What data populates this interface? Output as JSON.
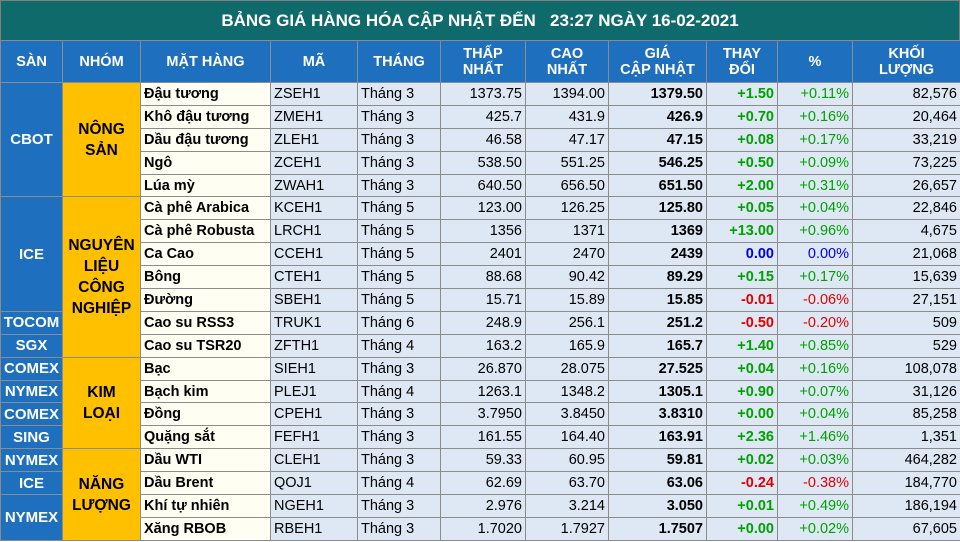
{
  "title": "BẢNG GIÁ HÀNG HÓA CẬP NHẬT ĐẾN   23:27 NGÀY 16-02-2021",
  "header": [
    "SÀN",
    "NHÓM",
    "MẶT HÀNG",
    "MÃ",
    "THÁNG",
    "THẤP\nNHẤT",
    "CAO\nNHẤT",
    "GIÁ\nCẬP NHẬT",
    "THAY\nĐỔI",
    "%",
    "KHỐI\nLƯỢNG"
  ],
  "groups": [
    {
      "label": "NÔNG\nSẢN",
      "exchanges": [
        {
          "label": "CBOT",
          "items": [
            [
              "Đậu tương",
              "ZSEH1",
              "Tháng 3",
              "1373.75",
              "1394.00",
              "1379.50",
              "+1.50",
              "+0.11%",
              "82,576"
            ],
            [
              "Khô đậu tương",
              "ZMEH1",
              "Tháng 3",
              "425.7",
              "431.9",
              "426.9",
              "+0.70",
              "+0.16%",
              "20,464"
            ],
            [
              "Dầu đậu tương",
              "ZLEH1",
              "Tháng 3",
              "46.58",
              "47.17",
              "47.15",
              "+0.08",
              "+0.17%",
              "33,219"
            ],
            [
              "Ngô",
              "ZCEH1",
              "Tháng 3",
              "538.50",
              "551.25",
              "546.25",
              "+0.50",
              "+0.09%",
              "73,225"
            ],
            [
              "Lúa mỳ",
              "ZWAH1",
              "Tháng 3",
              "640.50",
              "656.50",
              "651.50",
              "+2.00",
              "+0.31%",
              "26,657"
            ]
          ]
        }
      ]
    },
    {
      "label": "NGUYÊN\nLIỆU\nCÔNG\nNGHIỆP",
      "exchanges": [
        {
          "label": "ICE",
          "items": [
            [
              "Cà phê Arabica",
              "KCEH1",
              "Tháng 5",
              "123.00",
              "126.25",
              "125.80",
              "+0.05",
              "+0.04%",
              "22,846"
            ],
            [
              "Cà phê Robusta",
              "LRCH1",
              "Tháng 5",
              "1356",
              "1371",
              "1369",
              "+13.00",
              "+0.96%",
              "4,675"
            ],
            [
              "Ca Cao",
              "CCEH1",
              "Tháng 5",
              "2401",
              "2470",
              "2439",
              "0.00",
              "0.00%",
              "21,068"
            ],
            [
              "Bông",
              "CTEH1",
              "Tháng 5",
              "88.68",
              "90.42",
              "89.29",
              "+0.15",
              "+0.17%",
              "15,639"
            ],
            [
              "Đường",
              "SBEH1",
              "Tháng 5",
              "15.71",
              "15.89",
              "15.85",
              "-0.01",
              "-0.06%",
              "27,151"
            ]
          ]
        },
        {
          "label": "TOCOM",
          "items": [
            [
              "Cao su RSS3",
              "TRUK1",
              "Tháng 6",
              "248.9",
              "256.1",
              "251.2",
              "-0.50",
              "-0.20%",
              "509"
            ]
          ]
        },
        {
          "label": "SGX",
          "items": [
            [
              "Cao su TSR20",
              "ZFTH1",
              "Tháng 4",
              "163.2",
              "165.9",
              "165.7",
              "+1.40",
              "+0.85%",
              "529"
            ]
          ]
        }
      ]
    },
    {
      "label": "KIM\nLOẠI",
      "exchanges": [
        {
          "label": "COMEX",
          "items": [
            [
              "Bạc",
              "SIEH1",
              "Tháng 3",
              "26.870",
              "28.075",
              "27.525",
              "+0.04",
              "+0.16%",
              "108,078"
            ]
          ]
        },
        {
          "label": "NYMEX",
          "items": [
            [
              "Bạch kim",
              "PLEJ1",
              "Tháng 4",
              "1263.1",
              "1348.2",
              "1305.1",
              "+0.90",
              "+0.07%",
              "31,126"
            ]
          ]
        },
        {
          "label": "COMEX",
          "items": [
            [
              "Đồng",
              "CPEH1",
              "Tháng 3",
              "3.7950",
              "3.8450",
              "3.8310",
              "+0.00",
              "+0.04%",
              "85,258"
            ]
          ]
        },
        {
          "label": "SING",
          "items": [
            [
              "Quặng sắt",
              "FEFH1",
              "Tháng 3",
              "161.55",
              "164.40",
              "163.91",
              "+2.36",
              "+1.46%",
              "1,351"
            ]
          ]
        }
      ]
    },
    {
      "label": "NĂNG\nLƯỢNG",
      "exchanges": [
        {
          "label": "NYMEX",
          "items": [
            [
              "Dầu WTI",
              "CLEH1",
              "Tháng 3",
              "59.33",
              "60.95",
              "59.81",
              "+0.02",
              "+0.03%",
              "464,282"
            ]
          ]
        },
        {
          "label": "ICE",
          "items": [
            [
              "Dầu Brent",
              "QOJ1",
              "Tháng 4",
              "62.69",
              "63.70",
              "63.06",
              "-0.24",
              "-0.38%",
              "184,770"
            ]
          ]
        },
        {
          "label": "NYMEX",
          "items": [
            [
              "Khí tự nhiên",
              "NGEH1",
              "Tháng 3",
              "2.976",
              "3.214",
              "3.050",
              "+0.01",
              "+0.49%",
              "186,194"
            ],
            [
              "Xăng RBOB",
              "RBEH1",
              "Tháng 3",
              "1.7020",
              "1.7927",
              "1.7507",
              "+0.00",
              "+0.02%",
              "67,605"
            ]
          ]
        }
      ]
    }
  ]
}
